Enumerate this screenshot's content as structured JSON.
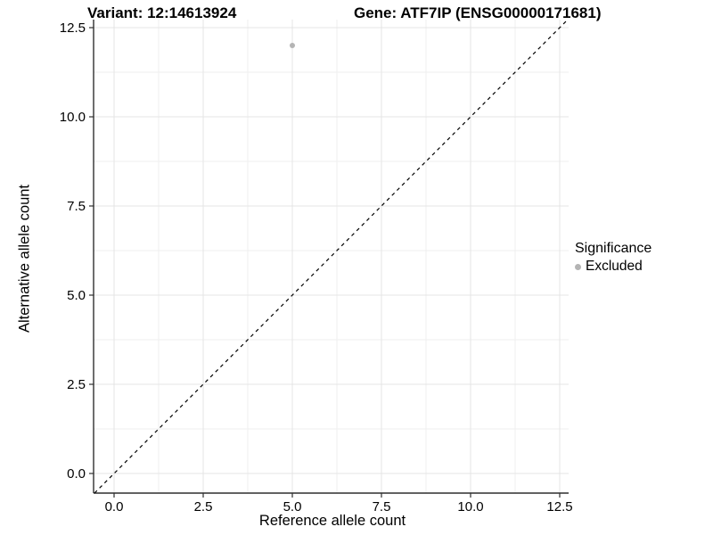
{
  "chart_data": {
    "type": "scatter",
    "variant_title": "Variant: 12:14613924",
    "gene_title": "Gene: ATF7IP (ENSG00000171681)",
    "xlabel": "Reference allele count",
    "ylabel": "Alternative allele count",
    "xlim": [
      -0.575,
      12.75
    ],
    "ylim": [
      -0.55,
      12.725
    ],
    "x_ticks": [
      0.0,
      2.5,
      5.0,
      7.5,
      10.0,
      12.5
    ],
    "x_tick_labels": [
      "0.0",
      "2.5",
      "5.0",
      "7.5",
      "10.0",
      "12.5"
    ],
    "y_ticks": [
      0.0,
      2.5,
      5.0,
      7.5,
      10.0,
      12.5
    ],
    "y_tick_labels": [
      "0.0",
      "2.5",
      "5.0",
      "7.5",
      "10.0",
      "12.5"
    ],
    "x_minor_ticks": [
      1.25,
      3.75,
      6.25,
      8.75,
      11.25
    ],
    "y_minor_ticks": [
      1.25,
      3.75,
      6.25,
      8.75,
      11.25
    ],
    "grid": true,
    "points": [
      {
        "x": 5,
        "y": 12,
        "series": "Excluded",
        "color": "#b4b4b4",
        "radius": 3
      }
    ],
    "abline": {
      "slope": 1,
      "intercept": 0,
      "style": "dashed",
      "color": "#000000"
    },
    "legend": {
      "title": "Significance",
      "position": "right",
      "items": [
        {
          "label": "Excluded",
          "color": "#b4b4b4"
        }
      ]
    }
  },
  "colors": {
    "background": "#ffffff",
    "grid_major": "#e4e4e4",
    "grid_minor": "#efefef",
    "axis": "#2f2f2f",
    "text": "#000000",
    "point_gray": "#b4b4b4"
  }
}
